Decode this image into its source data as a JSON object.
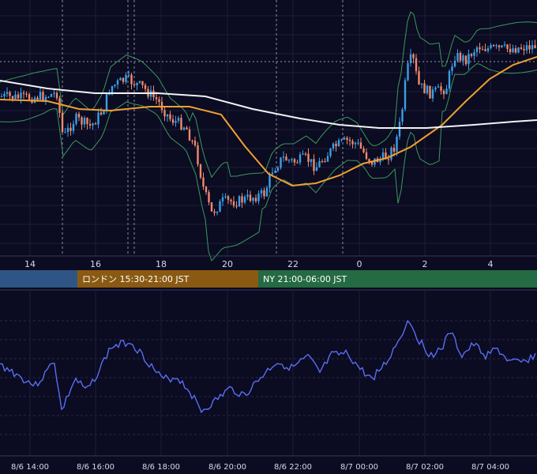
{
  "chart_data": [
    {
      "type": "candlestick",
      "title": "",
      "overlays": [
        {
          "kind": "bollinger_bands",
          "color": "#3a9a5a"
        },
        {
          "kind": "moving_average",
          "color": "#f0a030"
        },
        {
          "kind": "moving_average",
          "color": "#f2f2f2"
        }
      ],
      "x_tick_labels": [
        "14",
        "16",
        "18",
        "20",
        "22",
        "0",
        "2",
        "4"
      ],
      "candle_colors": {
        "up": "#3aa0e8",
        "down": "#f08a6a"
      },
      "grid": true,
      "dashed_verticals": true,
      "note": ""
    },
    {
      "type": "line",
      "series_color": "#5a6ef0",
      "x_tick_labels": [
        "8/6 14:00",
        "8/6 16:00",
        "8/6 18:00",
        "8/6 20:00",
        "8/6 22:00",
        "8/7 00:00",
        "8/7 02:00",
        "8/7 04:00"
      ],
      "grid": true
    }
  ],
  "sessions": [
    {
      "label": "",
      "color": "#2e5585"
    },
    {
      "label": "ロンドン 15:30-21:00 JST",
      "color": "#8a5a12"
    },
    {
      "label": "NY 21:00-06:00 JST",
      "color": "#246a42"
    }
  ]
}
